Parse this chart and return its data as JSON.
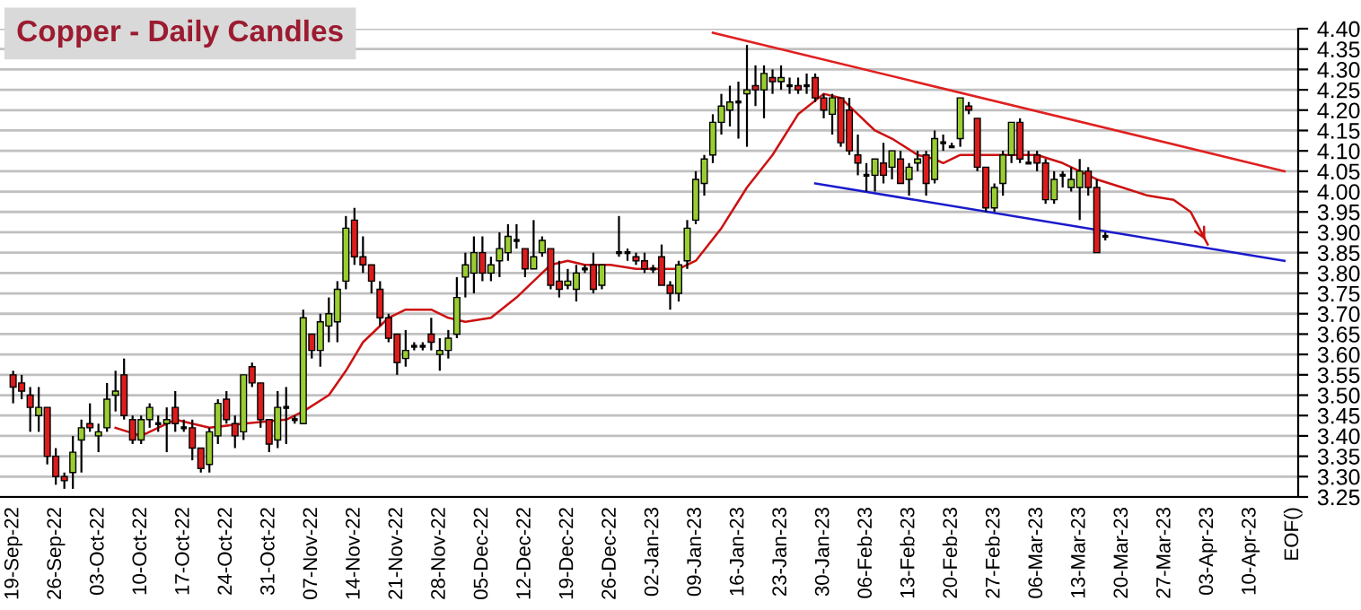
{
  "chart_data": {
    "type": "candlestick",
    "title": "Copper - Daily Candles",
    "categories": [
      "19-Sep-22",
      null,
      null,
      null,
      null,
      "26-Sep-22",
      null,
      null,
      null,
      null,
      "03-Oct-22",
      null,
      null,
      null,
      null,
      "10-Oct-22",
      null,
      null,
      null,
      null,
      "17-Oct-22",
      null,
      null,
      null,
      null,
      "24-Oct-22",
      null,
      null,
      null,
      null,
      "31-Oct-22",
      null,
      null,
      null,
      null,
      "07-Nov-22",
      null,
      null,
      null,
      null,
      "14-Nov-22",
      null,
      null,
      null,
      null,
      "21-Nov-22",
      null,
      null,
      null,
      null,
      "28-Nov-22",
      null,
      null,
      null,
      null,
      "05-Dec-22",
      null,
      null,
      null,
      null,
      "12-Dec-22",
      null,
      null,
      null,
      null,
      "19-Dec-22",
      null,
      null,
      null,
      null,
      "26-Dec-22",
      null,
      null,
      null,
      null,
      "02-Jan-23",
      null,
      null,
      null,
      null,
      "09-Jan-23",
      null,
      null,
      null,
      null,
      "16-Jan-23",
      null,
      null,
      null,
      null,
      "23-Jan-23",
      null,
      null,
      null,
      null,
      "30-Jan-23",
      null,
      null,
      null,
      null,
      "06-Feb-23",
      null,
      null,
      null,
      null,
      "13-Feb-23",
      null,
      null,
      null,
      null,
      "20-Feb-23",
      null,
      null,
      null,
      null,
      "27-Feb-23",
      null,
      null,
      null,
      null,
      "06-Mar-23",
      null,
      null,
      null,
      null,
      "13-Mar-23",
      null,
      null,
      null,
      null,
      "20-Mar-23",
      null,
      null,
      null,
      null,
      "27-Mar-23",
      null,
      null,
      null,
      null,
      "03-Apr-23",
      null,
      null,
      null,
      null,
      "10-Apr-23",
      null,
      null,
      null,
      null,
      "EOF()"
    ],
    "ohlc": [
      [
        3.55,
        3.56,
        3.48,
        3.52
      ],
      [
        3.53,
        3.55,
        3.49,
        3.51
      ],
      [
        3.5,
        3.52,
        3.41,
        3.47
      ],
      [
        3.45,
        3.52,
        3.41,
        3.47
      ],
      [
        3.47,
        3.47,
        3.33,
        3.35
      ],
      [
        3.35,
        3.37,
        3.28,
        3.3
      ],
      [
        3.3,
        3.31,
        3.27,
        3.29
      ],
      [
        3.31,
        3.4,
        3.27,
        3.36
      ],
      [
        3.39,
        3.44,
        3.31,
        3.42
      ],
      [
        3.43,
        3.48,
        3.41,
        3.42
      ],
      [
        3.4,
        3.43,
        3.36,
        3.41
      ],
      [
        3.42,
        3.53,
        3.41,
        3.49
      ],
      [
        3.5,
        3.56,
        3.46,
        3.51
      ],
      [
        3.55,
        3.59,
        3.44,
        3.45
      ],
      [
        3.44,
        3.45,
        3.38,
        3.39
      ],
      [
        3.39,
        3.45,
        3.38,
        3.44
      ],
      [
        3.44,
        3.48,
        3.42,
        3.47
      ],
      [
        3.43,
        3.45,
        3.41,
        3.43
      ],
      [
        3.43,
        3.47,
        3.36,
        3.44
      ],
      [
        3.47,
        3.51,
        3.41,
        3.43
      ],
      [
        3.42,
        3.44,
        3.41,
        3.42
      ],
      [
        3.42,
        3.44,
        3.34,
        3.37
      ],
      [
        3.37,
        3.37,
        3.31,
        3.32
      ],
      [
        3.33,
        3.42,
        3.31,
        3.41
      ],
      [
        3.4,
        3.49,
        3.38,
        3.48
      ],
      [
        3.49,
        3.51,
        3.43,
        3.44
      ],
      [
        3.43,
        3.45,
        3.37,
        3.4
      ],
      [
        3.41,
        3.55,
        3.39,
        3.55
      ],
      [
        3.57,
        3.58,
        3.52,
        3.53
      ],
      [
        3.53,
        3.53,
        3.42,
        3.44
      ],
      [
        3.44,
        3.44,
        3.36,
        3.38
      ],
      [
        3.39,
        3.51,
        3.37,
        3.47
      ],
      [
        3.47,
        3.52,
        3.38,
        3.47
      ],
      [
        3.44,
        3.45,
        3.43,
        3.44
      ],
      [
        3.43,
        3.71,
        3.43,
        3.69
      ],
      [
        3.65,
        3.65,
        3.59,
        3.61
      ],
      [
        3.61,
        3.7,
        3.57,
        3.68
      ],
      [
        3.67,
        3.74,
        3.63,
        3.7
      ],
      [
        3.68,
        3.78,
        3.63,
        3.76
      ],
      [
        3.78,
        3.94,
        3.76,
        3.91
      ],
      [
        3.93,
        3.96,
        3.82,
        3.84
      ],
      [
        3.84,
        3.89,
        3.8,
        3.82
      ],
      [
        3.82,
        3.82,
        3.75,
        3.78
      ],
      [
        3.76,
        3.78,
        3.67,
        3.69
      ],
      [
        3.69,
        3.7,
        3.63,
        3.64
      ],
      [
        3.65,
        3.65,
        3.55,
        3.58
      ],
      [
        3.59,
        3.66,
        3.57,
        3.61
      ],
      [
        3.62,
        3.63,
        3.61,
        3.62
      ],
      [
        3.62,
        3.63,
        3.61,
        3.62
      ],
      [
        3.65,
        3.69,
        3.61,
        3.63
      ],
      [
        3.6,
        3.64,
        3.56,
        3.61
      ],
      [
        3.61,
        3.66,
        3.59,
        3.64
      ],
      [
        3.65,
        3.79,
        3.64,
        3.74
      ],
      [
        3.79,
        3.85,
        3.74,
        3.82
      ],
      [
        3.8,
        3.89,
        3.75,
        3.85
      ],
      [
        3.85,
        3.89,
        3.78,
        3.8
      ],
      [
        3.8,
        3.84,
        3.78,
        3.82
      ],
      [
        3.83,
        3.9,
        3.79,
        3.86
      ],
      [
        3.85,
        3.92,
        3.83,
        3.89
      ],
      [
        3.88,
        3.92,
        3.86,
        3.88
      ],
      [
        3.86,
        3.86,
        3.79,
        3.81
      ],
      [
        3.81,
        3.93,
        3.81,
        3.84
      ],
      [
        3.85,
        3.89,
        3.84,
        3.88
      ],
      [
        3.86,
        3.86,
        3.76,
        3.77
      ],
      [
        3.78,
        3.83,
        3.74,
        3.76
      ],
      [
        3.77,
        3.81,
        3.76,
        3.78
      ],
      [
        3.76,
        3.82,
        3.73,
        3.8
      ],
      [
        3.81,
        3.82,
        3.8,
        3.81
      ],
      [
        3.82,
        3.85,
        3.75,
        3.76
      ],
      [
        3.77,
        3.82,
        3.76,
        3.82
      ],
      null,
      [
        3.85,
        3.94,
        3.84,
        3.85
      ],
      [
        3.85,
        3.86,
        3.83,
        3.85
      ],
      [
        3.84,
        3.85,
        3.82,
        3.83
      ],
      [
        3.83,
        3.85,
        3.8,
        3.81
      ],
      [
        3.81,
        3.82,
        3.8,
        3.81
      ],
      [
        3.84,
        3.87,
        3.77,
        3.77
      ],
      [
        3.77,
        3.78,
        3.71,
        3.75
      ],
      [
        3.75,
        3.83,
        3.73,
        3.82
      ],
      [
        3.83,
        3.93,
        3.81,
        3.91
      ],
      [
        3.93,
        4.05,
        3.92,
        4.03
      ],
      [
        4.02,
        4.09,
        3.99,
        4.08
      ],
      [
        4.09,
        4.19,
        4.07,
        4.17
      ],
      [
        4.17,
        4.24,
        4.14,
        4.21
      ],
      [
        4.2,
        4.26,
        4.16,
        4.22
      ],
      [
        4.22,
        4.27,
        4.13,
        4.22
      ],
      [
        4.24,
        4.36,
        4.11,
        4.25
      ],
      [
        4.26,
        4.31,
        4.21,
        4.25
      ],
      [
        4.25,
        4.31,
        4.18,
        4.29
      ],
      [
        4.28,
        4.3,
        4.24,
        4.27
      ],
      [
        4.27,
        4.31,
        4.25,
        4.28
      ],
      [
        4.26,
        4.28,
        4.24,
        4.26
      ],
      [
        4.26,
        4.28,
        4.24,
        4.25
      ],
      [
        4.26,
        4.29,
        4.24,
        4.26
      ],
      [
        4.28,
        4.29,
        4.22,
        4.23
      ],
      [
        4.23,
        4.24,
        4.18,
        4.2
      ],
      [
        4.19,
        4.24,
        4.14,
        4.23
      ],
      [
        4.23,
        4.23,
        4.11,
        4.12
      ],
      [
        4.2,
        4.23,
        4.09,
        4.1
      ],
      [
        4.09,
        4.14,
        4.04,
        4.07
      ],
      [
        4.04,
        4.07,
        4.0,
        4.04
      ],
      [
        4.04,
        4.08,
        4.0,
        4.08
      ],
      [
        4.07,
        4.12,
        4.02,
        4.04
      ],
      [
        4.06,
        4.1,
        4.03,
        4.1
      ],
      [
        4.08,
        4.1,
        4.02,
        4.02
      ],
      [
        4.03,
        4.07,
        3.99,
        4.06
      ],
      [
        4.07,
        4.1,
        4.05,
        4.08
      ],
      [
        4.09,
        4.1,
        3.99,
        4.02
      ],
      [
        4.03,
        4.15,
        4.02,
        4.13
      ],
      [
        4.12,
        4.14,
        4.1,
        4.12
      ],
      [
        4.11,
        4.12,
        4.11,
        4.11
      ],
      [
        4.13,
        4.23,
        4.11,
        4.23
      ],
      [
        4.21,
        4.22,
        4.19,
        4.2
      ],
      [
        4.18,
        4.18,
        4.05,
        4.06
      ],
      [
        4.06,
        4.06,
        3.95,
        3.96
      ],
      [
        3.96,
        4.02,
        3.95,
        4.01
      ],
      [
        4.02,
        4.1,
        3.99,
        4.09
      ],
      [
        4.09,
        4.17,
        4.07,
        4.17
      ],
      [
        4.17,
        4.18,
        4.07,
        4.08
      ],
      [
        4.07,
        4.1,
        4.07,
        4.07
      ],
      [
        4.09,
        4.1,
        4.05,
        4.07
      ],
      [
        4.07,
        4.08,
        3.97,
        3.98
      ],
      [
        3.98,
        4.05,
        3.97,
        4.03
      ],
      [
        4.04,
        4.05,
        4.01,
        4.04
      ],
      [
        4.01,
        4.06,
        4.0,
        4.03
      ],
      [
        4.01,
        4.08,
        3.93,
        4.05
      ],
      [
        4.05,
        4.06,
        3.99,
        4.01
      ],
      [
        4.01,
        4.03,
        3.85,
        3.85
      ],
      [
        3.89,
        3.9,
        3.88,
        3.89
      ],
      null,
      null,
      null,
      null,
      null,
      null,
      null,
      null,
      null,
      null,
      null,
      null,
      null,
      null,
      null,
      null,
      null,
      null,
      null,
      null,
      null,
      null
    ],
    "series": [
      {
        "type": "line",
        "color": "#cc1111",
        "values": [
          null,
          null,
          null,
          null,
          null,
          null,
          null,
          null,
          null,
          null,
          null,
          null,
          3.42,
          null,
          null,
          3.4,
          null,
          null,
          null,
          3.44,
          null,
          null,
          null,
          3.42,
          null,
          null,
          null,
          3.43,
          null,
          null,
          null,
          null,
          3.44,
          null,
          3.46,
          null,
          null,
          3.5,
          null,
          3.56,
          null,
          3.63,
          null,
          null,
          3.69,
          null,
          3.71,
          null,
          null,
          3.71,
          null,
          3.69,
          null,
          3.68,
          null,
          null,
          3.69,
          null,
          null,
          3.74,
          null,
          3.78,
          null,
          3.82,
          null,
          3.83,
          null,
          3.82,
          null,
          null,
          3.82,
          null,
          null,
          3.81,
          null,
          null,
          3.81,
          null,
          3.81,
          null,
          3.83,
          null,
          null,
          3.91,
          null,
          null,
          4.01,
          null,
          null,
          4.09,
          null,
          null,
          4.19,
          null,
          null,
          4.24,
          null,
          4.23,
          null,
          4.19,
          null,
          4.15,
          null,
          4.13,
          null,
          null,
          4.09,
          null,
          4.08,
          4.07,
          null,
          4.09,
          null,
          null,
          4.09,
          null,
          null,
          4.09,
          null,
          null,
          4.09,
          null,
          null,
          4.07,
          null,
          4.05,
          null,
          4.03,
          null,
          null,
          4.01,
          null,
          null,
          3.99,
          null,
          null,
          3.98,
          null,
          3.95,
          3.91,
          3.87,
          null,
          null,
          null,
          null,
          null,
          null,
          null,
          null,
          null,
          null
        ]
      },
      {
        "type": "line",
        "color": "#e02020",
        "values": [
          null,
          null,
          null,
          null,
          null,
          null,
          null,
          null,
          null,
          null,
          null,
          null,
          null,
          null,
          null,
          null,
          null,
          null,
          null,
          null,
          null,
          null,
          null,
          null,
          null,
          null,
          null,
          null,
          null,
          null,
          null,
          null,
          null,
          null,
          null,
          null,
          null,
          null,
          null,
          null,
          null,
          null,
          null,
          null,
          null,
          null,
          null,
          null,
          null,
          null,
          null,
          null,
          null,
          null,
          null,
          null,
          null,
          null,
          null,
          null,
          null,
          null,
          null,
          null,
          null,
          null,
          null,
          null,
          null,
          null,
          null,
          null,
          null,
          null,
          null,
          null,
          null,
          null,
          null,
          null,
          null,
          null,
          4.39,
          null,
          null,
          null,
          null,
          null,
          null,
          null,
          null,
          null,
          null,
          null,
          null,
          null,
          null,
          null,
          null,
          null,
          null,
          null,
          null,
          null,
          null,
          null,
          null,
          null,
          null,
          null,
          null,
          null,
          null,
          null,
          null,
          null,
          null,
          null,
          null,
          null,
          null,
          null,
          null,
          null,
          null,
          null,
          null,
          null,
          null,
          null,
          null,
          null,
          null,
          null,
          null,
          null,
          null,
          null,
          null,
          null,
          null,
          null,
          null,
          null,
          null,
          null,
          null,
          null,
          null,
          4.05,
          null
        ]
      },
      {
        "type": "line",
        "color": "#1a1acc",
        "values": [
          null,
          null,
          null,
          null,
          null,
          null,
          null,
          null,
          null,
          null,
          null,
          null,
          null,
          null,
          null,
          null,
          null,
          null,
          null,
          null,
          null,
          null,
          null,
          null,
          null,
          null,
          null,
          null,
          null,
          null,
          null,
          null,
          null,
          null,
          null,
          null,
          null,
          null,
          null,
          null,
          null,
          null,
          null,
          null,
          null,
          null,
          null,
          null,
          null,
          null,
          null,
          null,
          null,
          null,
          null,
          null,
          null,
          null,
          null,
          null,
          null,
          null,
          null,
          null,
          null,
          null,
          null,
          null,
          null,
          null,
          null,
          null,
          null,
          null,
          null,
          null,
          null,
          null,
          null,
          null,
          null,
          null,
          null,
          null,
          null,
          null,
          null,
          null,
          null,
          null,
          null,
          null,
          null,
          null,
          4.02,
          null,
          null,
          null,
          null,
          null,
          null,
          null,
          null,
          null,
          null,
          null,
          null,
          null,
          null,
          null,
          null,
          null,
          null,
          null,
          null,
          null,
          null,
          null,
          null,
          null,
          null,
          null,
          null,
          null,
          null,
          null,
          null,
          null,
          null,
          null,
          null,
          null,
          null,
          null,
          null,
          null,
          null,
          null,
          null,
          null,
          null,
          null,
          null,
          null,
          null,
          null,
          null,
          null,
          null,
          3.83,
          null
        ]
      }
    ],
    "ylim": [
      3.25,
      4.4
    ],
    "yticks": [
      {
        "value": 3.25,
        "label": "3.25"
      },
      {
        "value": 3.3,
        "label": "3.30"
      },
      {
        "value": 3.35,
        "label": "3.35"
      },
      {
        "value": 3.4,
        "label": "3.40"
      },
      {
        "value": 3.45,
        "label": "3.45"
      },
      {
        "value": 3.5,
        "label": "3.50"
      },
      {
        "value": 3.55,
        "label": "3.55"
      },
      {
        "value": 3.6,
        "label": "3.60"
      },
      {
        "value": 3.65,
        "label": "3.65"
      },
      {
        "value": 3.7,
        "label": "3.70"
      },
      {
        "value": 3.75,
        "label": "3.75"
      },
      {
        "value": 3.8,
        "label": "3.80"
      },
      {
        "value": 3.85,
        "label": "3.85"
      },
      {
        "value": 3.9,
        "label": "3.90"
      },
      {
        "value": 3.95,
        "label": "3.95"
      },
      {
        "value": 4.0,
        "label": "4.00"
      },
      {
        "value": 4.05,
        "label": "4.05"
      },
      {
        "value": 4.1,
        "label": "4.10"
      },
      {
        "value": 4.15,
        "label": "4.15"
      },
      {
        "value": 4.2,
        "label": "4.20"
      },
      {
        "value": 4.25,
        "label": "4.25"
      },
      {
        "value": 4.3,
        "label": "4.30"
      },
      {
        "value": 4.35,
        "label": "4.35"
      },
      {
        "value": 4.4,
        "label": "4.40"
      }
    ],
    "grid": "y"
  }
}
